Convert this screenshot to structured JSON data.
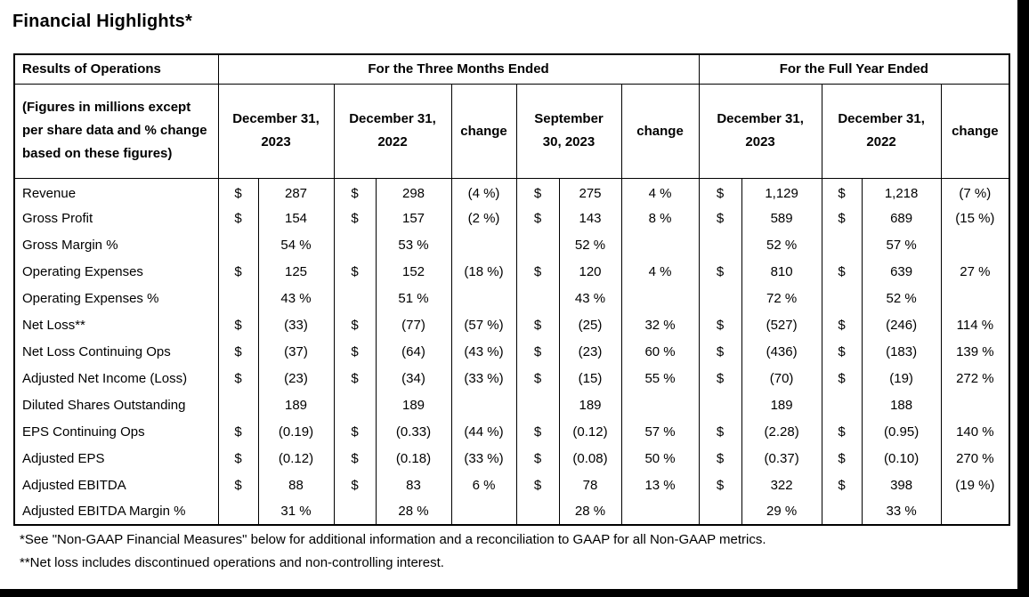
{
  "title": "Financial Highlights*",
  "table": {
    "corner_header": "Results of Operations",
    "figures_note": "(Figures in millions except per share data and % change based on these figures)",
    "group_headers": [
      "For the Three Months Ended",
      "For the Full Year Ended"
    ],
    "col_headers": [
      "December 31, 2023",
      "December 31, 2022",
      "change",
      "September 30, 2023",
      "change",
      "December 31, 2023",
      "December 31, 2022",
      "change"
    ],
    "currency_symbol": "$",
    "rows": [
      {
        "label": "Revenue",
        "d1": "$",
        "v1": "287",
        "d2": "$",
        "v2": "298",
        "c1": "(4 %)",
        "d3": "$",
        "v3": "275",
        "c2": "4 %",
        "d4": "$",
        "v4": "1,129",
        "d5": "$",
        "v5": "1,218",
        "c3": "(7 %)"
      },
      {
        "label": "Gross Profit",
        "d1": "$",
        "v1": "154",
        "d2": "$",
        "v2": "157",
        "c1": "(2 %)",
        "d3": "$",
        "v3": "143",
        "c2": "8 %",
        "d4": "$",
        "v4": "589",
        "d5": "$",
        "v5": "689",
        "c3": "(15 %)"
      },
      {
        "label": "Gross Margin %",
        "d1": "",
        "v1": "54 %",
        "d2": "",
        "v2": "53 %",
        "c1": "",
        "d3": "",
        "v3": "52 %",
        "c2": "",
        "d4": "",
        "v4": "52 %",
        "d5": "",
        "v5": "57 %",
        "c3": ""
      },
      {
        "label": "Operating Expenses",
        "d1": "$",
        "v1": "125",
        "d2": "$",
        "v2": "152",
        "c1": "(18 %)",
        "d3": "$",
        "v3": "120",
        "c2": "4 %",
        "d4": "$",
        "v4": "810",
        "d5": "$",
        "v5": "639",
        "c3": "27 %"
      },
      {
        "label": "Operating Expenses %",
        "d1": "",
        "v1": "43 %",
        "d2": "",
        "v2": "51 %",
        "c1": "",
        "d3": "",
        "v3": "43 %",
        "c2": "",
        "d4": "",
        "v4": "72 %",
        "d5": "",
        "v5": "52 %",
        "c3": ""
      },
      {
        "label": "Net Loss**",
        "d1": "$",
        "v1": "(33)",
        "d2": "$",
        "v2": "(77)",
        "c1": "(57 %)",
        "d3": "$",
        "v3": "(25)",
        "c2": "32 %",
        "d4": "$",
        "v4": "(527)",
        "d5": "$",
        "v5": "(246)",
        "c3": "114 %"
      },
      {
        "label": "Net Loss Continuing Ops",
        "d1": "$",
        "v1": "(37)",
        "d2": "$",
        "v2": "(64)",
        "c1": "(43 %)",
        "d3": "$",
        "v3": "(23)",
        "c2": "60 %",
        "d4": "$",
        "v4": "(436)",
        "d5": "$",
        "v5": "(183)",
        "c3": "139 %"
      },
      {
        "label": "Adjusted Net Income (Loss)",
        "d1": "$",
        "v1": "(23)",
        "d2": "$",
        "v2": "(34)",
        "c1": "(33 %)",
        "d3": "$",
        "v3": "(15)",
        "c2": "55 %",
        "d4": "$",
        "v4": "(70)",
        "d5": "$",
        "v5": "(19)",
        "c3": "272 %"
      },
      {
        "label": "Diluted Shares Outstanding",
        "d1": "",
        "v1": "189",
        "d2": "",
        "v2": "189",
        "c1": "",
        "d3": "",
        "v3": "189",
        "c2": "",
        "d4": "",
        "v4": "189",
        "d5": "",
        "v5": "188",
        "c3": ""
      },
      {
        "label": "EPS Continuing Ops",
        "d1": "$",
        "v1": "(0.19)",
        "d2": "$",
        "v2": "(0.33)",
        "c1": "(44 %)",
        "d3": "$",
        "v3": "(0.12)",
        "c2": "57 %",
        "d4": "$",
        "v4": "(2.28)",
        "d5": "$",
        "v5": "(0.95)",
        "c3": "140 %"
      },
      {
        "label": "Adjusted EPS",
        "d1": "$",
        "v1": "(0.12)",
        "d2": "$",
        "v2": "(0.18)",
        "c1": "(33 %)",
        "d3": "$",
        "v3": "(0.08)",
        "c2": "50 %",
        "d4": "$",
        "v4": "(0.37)",
        "d5": "$",
        "v5": "(0.10)",
        "c3": "270 %"
      },
      {
        "label": "Adjusted EBITDA",
        "d1": "$",
        "v1": "88",
        "d2": "$",
        "v2": "83",
        "c1": "6 %",
        "d3": "$",
        "v3": "78",
        "c2": "13 %",
        "d4": "$",
        "v4": "322",
        "d5": "$",
        "v5": "398",
        "c3": "(19 %)"
      },
      {
        "label": "Adjusted EBITDA Margin %",
        "d1": "",
        "v1": "31 %",
        "d2": "",
        "v2": "28 %",
        "c1": "",
        "d3": "",
        "v3": "28 %",
        "c2": "",
        "d4": "",
        "v4": "29 %",
        "d5": "",
        "v5": "33 %",
        "c3": ""
      }
    ]
  },
  "footnotes": [
    "*See \"Non-GAAP Financial Measures\" below for additional information and a reconciliation to GAAP for all Non-GAAP metrics.",
    "**Net loss includes discontinued operations and non-controlling interest."
  ]
}
